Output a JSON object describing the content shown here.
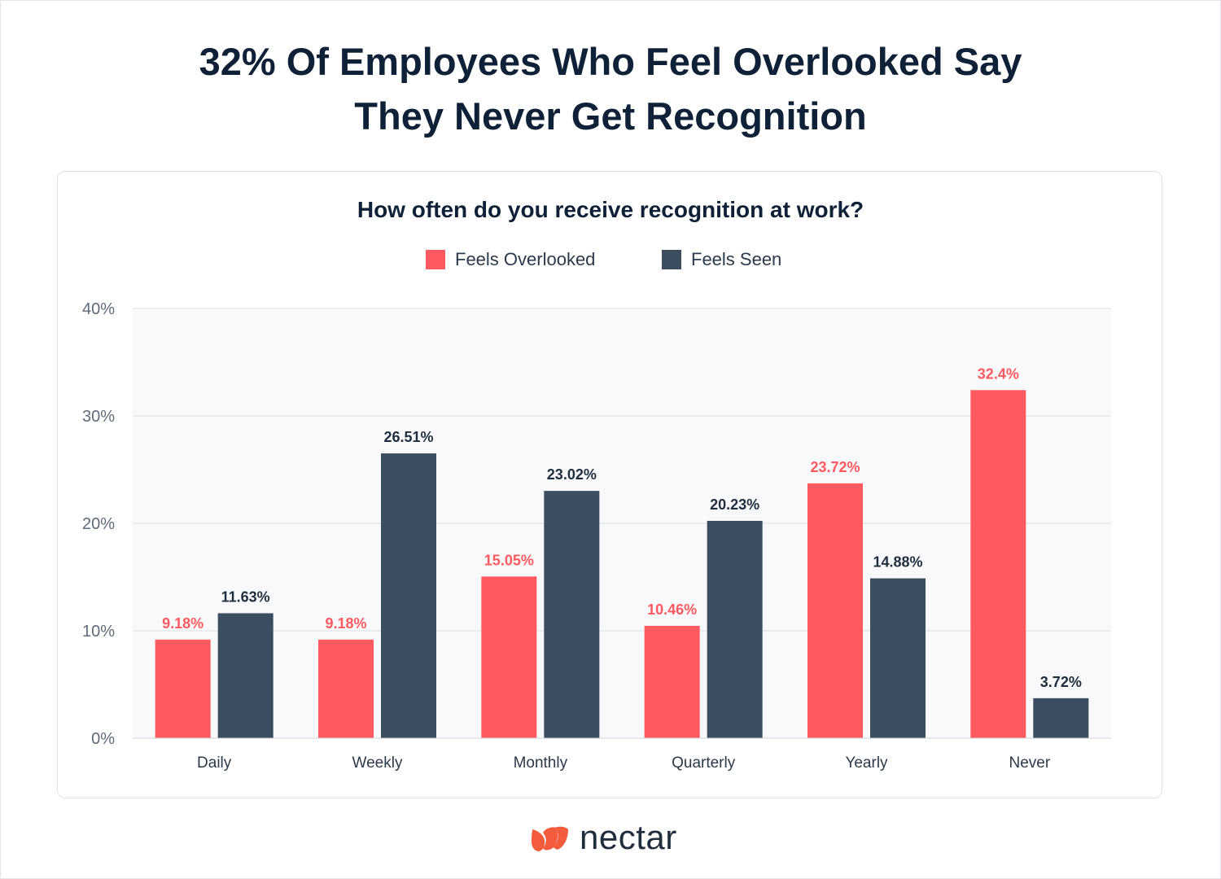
{
  "headline": {
    "line1": "32% Of Employees Who Feel Overlooked Say",
    "line2": "They Never Get Recognition"
  },
  "brand": {
    "name": "nectar",
    "color": "#f25b3b"
  },
  "colors": {
    "overlooked": "#ff5a5f",
    "seen": "#3c4d5f",
    "plot_bg": "#f8f9fb"
  },
  "chart_data": {
    "type": "bar",
    "title": "How often do you receive recognition at work?",
    "categories": [
      "Daily",
      "Weekly",
      "Monthly",
      "Quarterly",
      "Yearly",
      "Never"
    ],
    "series": [
      {
        "name": "Feels Overlooked",
        "values": [
          9.18,
          9.18,
          15.05,
          10.46,
          23.72,
          32.4
        ],
        "labels": [
          "9.18%",
          "9.18%",
          "15.05%",
          "10.46%",
          "23.72%",
          "32.4%"
        ]
      },
      {
        "name": "Feels Seen",
        "values": [
          11.63,
          26.51,
          23.02,
          20.23,
          14.88,
          3.72
        ],
        "labels": [
          "11.63%",
          "26.51%",
          "23.02%",
          "20.23%",
          "14.88%",
          "3.72%"
        ]
      }
    ],
    "yticks": [
      "0%",
      "10%",
      "20%",
      "30%",
      "40%"
    ],
    "ylim": [
      0,
      40
    ],
    "grid": true,
    "legend_position": "top-center"
  }
}
